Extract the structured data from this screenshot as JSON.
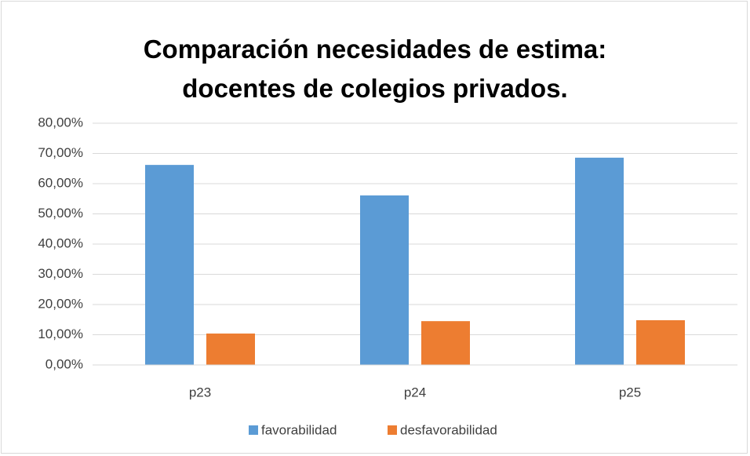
{
  "chart_data": {
    "type": "bar",
    "title": "Comparación necesidades de estima: docentes de colegios privados.",
    "categories": [
      "p23",
      "p24",
      "p25"
    ],
    "series": [
      {
        "name": "favorabilidad",
        "color": "#5b9bd5",
        "values": [
          66.2,
          56.1,
          68.6
        ]
      },
      {
        "name": "desfavorabilidad",
        "color": "#ed7d31",
        "values": [
          10.4,
          14.5,
          14.8
        ]
      }
    ],
    "ylim": [
      0,
      80
    ],
    "yticks": [
      {
        "value": 0,
        "label": "0,00%"
      },
      {
        "value": 10,
        "label": "10,00%"
      },
      {
        "value": 20,
        "label": "20,00%"
      },
      {
        "value": 30,
        "label": "30,00%"
      },
      {
        "value": 40,
        "label": "40,00%"
      },
      {
        "value": 50,
        "label": "50,00%"
      },
      {
        "value": 60,
        "label": "60,00%"
      },
      {
        "value": 70,
        "label": "70,00%"
      },
      {
        "value": 80,
        "label": "80,00%"
      }
    ],
    "grid": true,
    "legend": "bottom"
  }
}
